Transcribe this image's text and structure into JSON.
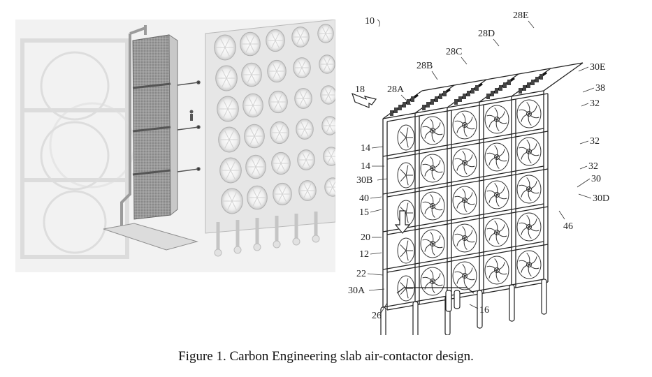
{
  "figure": {
    "caption": "Figure 1. Carbon Engineering slab air-contactor design."
  },
  "patent_labels": {
    "l10": "10",
    "l18": "18",
    "l28A": "28A",
    "l28B": "28B",
    "l28C": "28C",
    "l28D": "28D",
    "l28E": "28E",
    "l30E": "30E",
    "l38": "38",
    "l32a": "32",
    "l32b": "32",
    "l32c": "32",
    "l30": "30",
    "l30D": "30D",
    "l46": "46",
    "l14a": "14",
    "l14b": "14",
    "l30B": "30B",
    "l40": "40",
    "l15": "15",
    "l20": "20",
    "l12": "12",
    "l22": "22",
    "l30A": "30A",
    "l26": "26",
    "l16": "16"
  }
}
